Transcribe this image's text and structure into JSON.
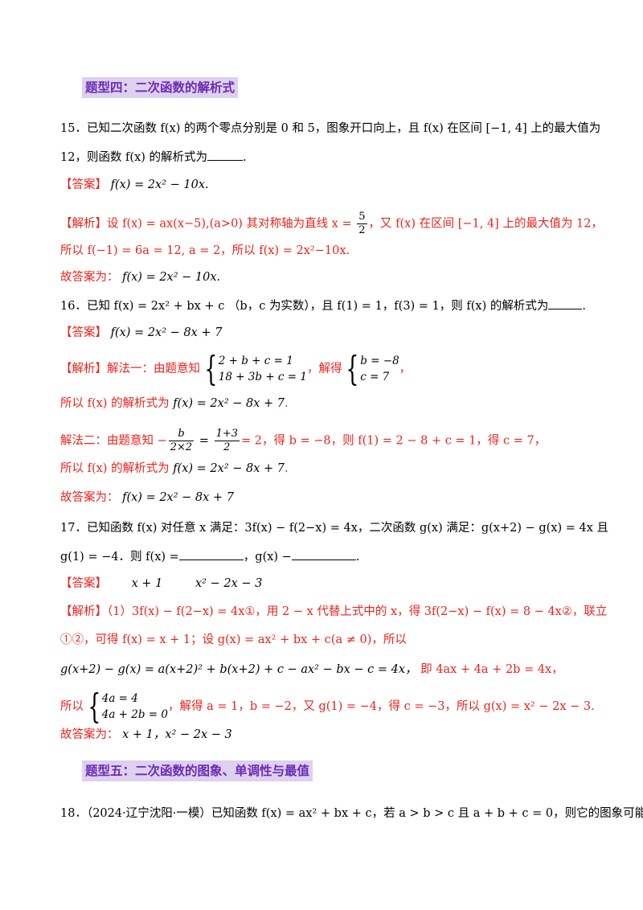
{
  "sections": [
    {
      "title": "题型四：二次函数的解析式"
    },
    {
      "title": "题型五：二次函数的图象、单调性与最值"
    }
  ],
  "lines": {
    "q15_a": "15．已知二次函数 f(x) 的两个零点分别是 0 和 5，图象开口向上，且 f(x) 在区间 [−1, 4] 上的最大值为",
    "q15_b": "12，则函数 f(x) 的解析式为",
    "q15_ans_tag": "【答案】",
    "q15_ans": "f(x) = 2x² − 10x.",
    "q15_exp_tag": "【解析】",
    "q15_exp_1": "设 f(x) = ax(x−5),(a>0) 其对称轴为直线 x =",
    "q15_exp_1b": "，又 f(x) 在区间 [−1, 4] 上的最大值为 12，",
    "q15_exp_frac_num": "5",
    "q15_exp_frac_den": "2",
    "q15_exp_2": "所以 f(−1) = 6a = 12, a = 2，所以 f(x) = 2x²−10x.",
    "q15_final_label": "故答案为：",
    "q15_final": "f(x) = 2x² − 10x.",
    "q16_a": "16．已知 f(x) = 2x² + bx + c （b，c 为实数），且 f(1) = 1，f(3) = 1，则 f(x) 的解析式为",
    "q16_ans_tag": "【答案】",
    "q16_ans": "f(x) = 2x² − 8x + 7",
    "q16_exp_tag": "【解析】",
    "q16_m1_a": "解法一：由题意知",
    "q16_m1_sys1": "2 + b + c = 1",
    "q16_m1_sys2": "18 + 3b + c = 1",
    "q16_m1_b": "，解得",
    "q16_m1_sol1": "b = −8",
    "q16_m1_sol2": "c = 7",
    "q16_m1_c": "，",
    "q16_m1_res_a": "所以 f(x) 的解析式为",
    "q16_m1_res_b": "f(x) = 2x² − 8x + 7",
    "q16_m2_a": "解法二：由题意知 −",
    "q16_m2_f1_num": "b",
    "q16_m2_f1_den": "2×2",
    "q16_m2_f2_num": "1+3",
    "q16_m2_f2_den": "2",
    "q16_m2_b": "= 2，得 b = −8，则 f(1) = 2 − 8 + c = 1，得 c = 7，",
    "q16_m2_res_a": "所以 f(x) 的解析式为",
    "q16_m2_res_b": "f(x) = 2x² − 8x + 7",
    "q16_final_label": "故答案为：",
    "q16_final": "f(x) = 2x² − 8x + 7",
    "q17_a": "17．已知函数 f(x) 对任意 x 满足：3f(x) − f(2−x) = 4x，二次函数 g(x) 满足：g(x+2) − g(x) = 4x 且",
    "q17_b1": "g(1) = −4．则 f(x) =",
    "q17_b2": "，g(x) −",
    "q17_ans_tag": "【答案】",
    "q17_ans1": "x + 1",
    "q17_ans2": "x² − 2x − 3",
    "q17_exp_tag": "【解析】",
    "q17_e1": "（1）3f(x) − f(2−x) = 4x①，用 2 − x 代替上式中的 x，得 3f(2−x) − f(x) = 8 − 4x②，联立",
    "q17_e2": "①②，可得 f(x) = x + 1；设 g(x) = ax² + bx + c(a ≠ 0)，所以",
    "q17_e3_a": "g(x+2) − g(x) = a(x+2)² + b(x+2) + c − ax² − bx − c = 4x，",
    "q17_e3_b": "即 4ax + 4a + 2b = 4x，",
    "q17_e4_a": "所以",
    "q17_e4_sys1": "4a = 4",
    "q17_e4_sys2": "4a + 2b = 0",
    "q17_e4_b": "，解得 a = 1，b = −2，又 g(1) = −4，得 c = −3，所以 g(x) = x² − 2x − 3.",
    "q17_final_label": "故答案为：",
    "q17_final": "x + 1，x² − 2x − 3",
    "q18": "18．（2024·辽宁沈阳·一模）已知函数 f(x) = ax² + bx + c，若 a > b > c 且 a + b + c = 0，则它的图象可能是（"
  },
  "colors": {
    "heading_bg": "#ded0ef",
    "heading_text": "#6a2bb5",
    "accent_red": "#e8231c"
  }
}
